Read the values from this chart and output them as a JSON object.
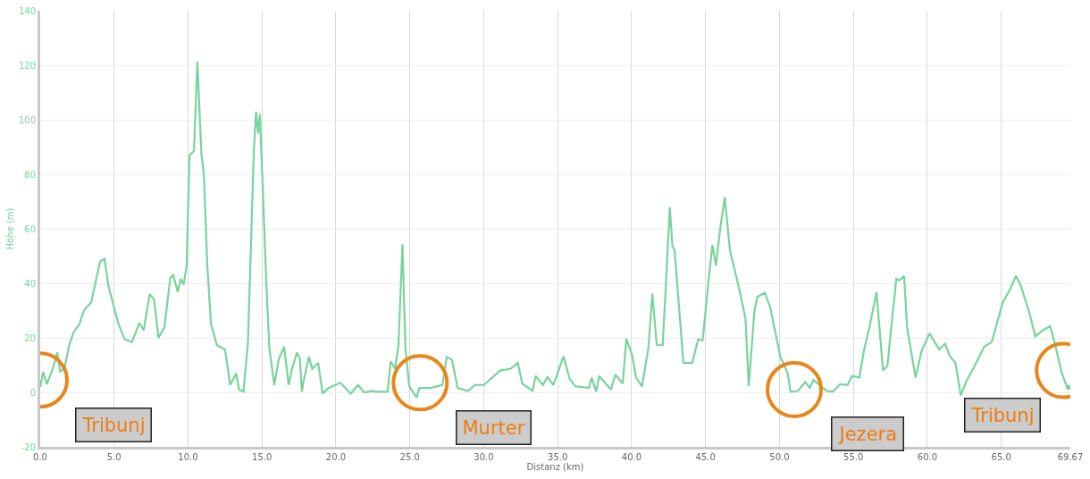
{
  "chart_data": {
    "type": "line",
    "xlabel": "Distanz (km)",
    "ylabel": "Höhe (m)",
    "x": [
      0,
      0.2,
      0.45,
      0.85,
      1.15,
      1.35,
      1.65,
      1.95,
      2.25,
      2.65,
      2.95,
      3.45,
      3.85,
      4.05,
      4.35,
      4.6,
      5.0,
      5.3,
      5.7,
      6.2,
      6.7,
      7.0,
      7.4,
      7.7,
      8.0,
      8.4,
      8.8,
      9.0,
      9.3,
      9.5,
      9.7,
      9.9,
      10.1,
      10.4,
      10.63,
      10.9,
      11.07,
      11.3,
      11.55,
      11.95,
      12.5,
      12.85,
      13.25,
      13.45,
      13.75,
      14.05,
      14.45,
      14.6,
      14.74,
      14.86,
      15.04,
      15.3,
      15.5,
      15.83,
      16.13,
      16.5,
      16.8,
      17.0,
      17.36,
      17.56,
      17.7,
      17.8,
      18.17,
      18.4,
      18.8,
      19.1,
      19.5,
      20.3,
      21.0,
      21.5,
      21.9,
      22.5,
      22.7,
      23.5,
      23.7,
      24.0,
      24.23,
      24.5,
      24.7,
      24.96,
      25.45,
      25.65,
      26.4,
      27.2,
      27.5,
      27.84,
      28.23,
      28.93,
      29.4,
      30.0,
      30.8,
      31.1,
      31.8,
      32.3,
      32.6,
      33.3,
      33.5,
      34.0,
      34.3,
      34.7,
      35.4,
      35.8,
      36.2,
      37.1,
      37.3,
      37.6,
      37.8,
      38.6,
      38.9,
      39.4,
      39.64,
      40.04,
      40.3,
      40.7,
      41.13,
      41.4,
      41.7,
      42.1,
      42.3,
      42.58,
      42.76,
      42.9,
      43.5,
      44.1,
      44.5,
      44.8,
      45.2,
      45.46,
      45.7,
      46.0,
      46.3,
      46.65,
      46.85,
      47.3,
      47.7,
      47.92,
      48.3,
      48.5,
      49.0,
      49.36,
      50.06,
      50.55,
      50.75,
      51.25,
      51.75,
      52.04,
      52.3,
      52.8,
      53.2,
      53.6,
      54.1,
      54.6,
      54.9,
      55.4,
      55.7,
      56.1,
      56.56,
      57.0,
      57.3,
      57.56,
      57.9,
      58.1,
      58.43,
      58.63,
      59.2,
      59.6,
      60.14,
      60.8,
      61.2,
      61.5,
      61.9,
      62.26,
      62.66,
      63.15,
      63.85,
      64.35,
      65.1,
      65.6,
      65.99,
      66.3,
      66.9,
      67.3,
      67.8,
      68.3,
      68.6,
      69.1,
      69.5,
      69.55,
      69.67
    ],
    "series": [
      {
        "color": "#78d49b",
        "values": [
          2,
          7.5,
          3,
          8.6,
          14.6,
          7.5,
          9,
          17,
          22,
          25,
          30,
          33,
          43,
          48,
          49,
          39.5,
          31,
          25,
          19.5,
          18.4,
          25.4,
          22.7,
          36,
          34,
          20,
          23.8,
          42,
          43,
          36.8,
          41.6,
          39.5,
          46.5,
          87,
          88.6,
          121.3,
          87.6,
          80,
          46.5,
          25,
          17.3,
          15.7,
          2.7,
          7,
          1,
          0.2,
          18.4,
          88.6,
          103,
          95,
          102,
          76.8,
          39,
          16.2,
          2.7,
          12,
          16.8,
          2.7,
          8,
          14.6,
          12.4,
          0.2,
          3.8,
          13,
          8.6,
          10.8,
          -0.5,
          1.6,
          3.5,
          -0.5,
          2.7,
          0,
          0.5,
          0.2,
          0.2,
          11.4,
          8.6,
          17.3,
          54.3,
          16.2,
          2.2,
          -1.9,
          1.6,
          1.6,
          2.7,
          13,
          12,
          1.6,
          0.5,
          2.7,
          2.7,
          6.5,
          8,
          8.6,
          10.8,
          3.2,
          0.5,
          6,
          2.7,
          5.6,
          2.7,
          13.2,
          4.9,
          2.2,
          1.6,
          5.4,
          0.2,
          6,
          1,
          6.5,
          3.2,
          19.7,
          13.5,
          5.4,
          2.2,
          16.2,
          36.2,
          17.3,
          17.3,
          37.8,
          67.9,
          53.5,
          52.4,
          10.8,
          10.8,
          19.5,
          19,
          41,
          54,
          46.5,
          60.5,
          71.6,
          52,
          47.6,
          37.3,
          27,
          2.2,
          29.7,
          35,
          36.5,
          31.4,
          13,
          7,
          0.2,
          0.5,
          3.8,
          1.6,
          4.5,
          2.2,
          0.5,
          0.2,
          3,
          2.7,
          6,
          5.4,
          15,
          24.3,
          36.8,
          8,
          9.7,
          23.8,
          41.6,
          41,
          42.7,
          23.8,
          5.4,
          15,
          21.6,
          15.7,
          17.8,
          13.5,
          10.8,
          -1.1,
          4.3,
          9.2,
          16.8,
          18.4,
          33,
          37.8,
          42.7,
          39.5,
          29.2,
          20.5,
          22.7,
          24.3,
          18.4,
          7,
          1,
          2.7,
          1
        ]
      }
    ],
    "xlim": [
      0,
      69.67
    ],
    "xticks": [
      {
        "value": 0,
        "label": "0.0"
      },
      {
        "value": 5,
        "label": "5.0"
      },
      {
        "value": 10,
        "label": "10.0"
      },
      {
        "value": 15,
        "label": "15.0"
      },
      {
        "value": 20,
        "label": "20.0"
      },
      {
        "value": 25,
        "label": "25.0"
      },
      {
        "value": 30,
        "label": "30.0"
      },
      {
        "value": 35,
        "label": "35.0"
      },
      {
        "value": 40,
        "label": "40.0"
      },
      {
        "value": 45,
        "label": "45.0"
      },
      {
        "value": 50,
        "label": "50.0"
      },
      {
        "value": 55,
        "label": "55.0"
      },
      {
        "value": 60,
        "label": "60.0"
      },
      {
        "value": 65,
        "label": "65.0"
      },
      69.67
    ],
    "ylim": [
      -20,
      140
    ],
    "yticks": [
      -20,
      0,
      20,
      40,
      60,
      80,
      100,
      120,
      140
    ],
    "grid": true,
    "marker": "none",
    "line_style": "solid",
    "annotations": [
      {
        "text": "Tribunj",
        "x": 0,
        "y": 4.5
      },
      {
        "text": "Murter",
        "x": 25.7,
        "y": 3.5
      },
      {
        "text": "Jezera",
        "x": 51.0,
        "y": 1
      },
      {
        "text": "Tribunj",
        "x": 69.2,
        "y": 8
      }
    ]
  }
}
